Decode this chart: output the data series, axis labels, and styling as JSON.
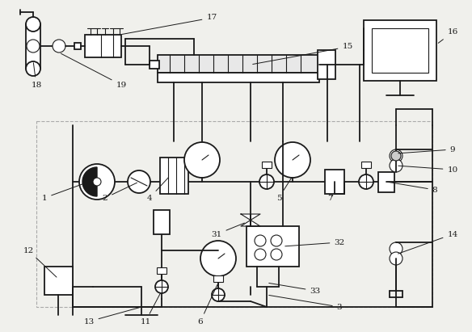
{
  "bg_color": "#f0f0ec",
  "line_color": "#1a1a1a",
  "gray_color": "#aaaaaa",
  "lw": 1.3,
  "tlw": 0.8,
  "fig_w": 5.84,
  "fig_h": 4.11
}
